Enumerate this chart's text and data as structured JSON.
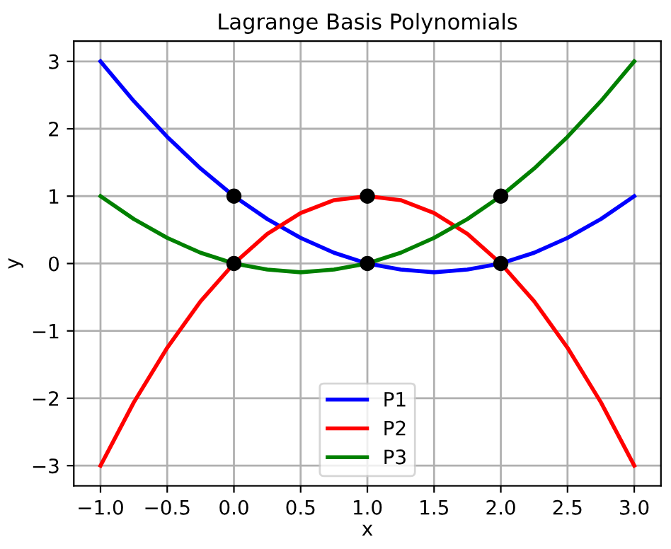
{
  "chart_data": {
    "type": "line",
    "title": "Lagrange Basis Polynomials",
    "xlabel": "x",
    "ylabel": "y",
    "x": [
      -1,
      -0.75,
      -0.5,
      -0.25,
      0,
      0.25,
      0.5,
      0.75,
      1,
      1.25,
      1.5,
      1.75,
      2,
      2.25,
      2.5,
      2.75,
      3
    ],
    "series": [
      {
        "name": "P1",
        "color": "#0000ff",
        "values": [
          3,
          2.41,
          1.88,
          1.41,
          1,
          0.66,
          0.38,
          0.16,
          0,
          -0.09,
          -0.13,
          -0.09,
          0,
          0.16,
          0.38,
          0.66,
          1
        ]
      },
      {
        "name": "P2",
        "color": "#ff0000",
        "values": [
          -3,
          -2.06,
          -1.25,
          -0.56,
          0,
          0.44,
          0.75,
          0.94,
          1,
          0.94,
          0.75,
          0.44,
          0,
          -0.56,
          -1.25,
          -2.06,
          -3
        ]
      },
      {
        "name": "P3",
        "color": "#008000",
        "values": [
          1,
          0.66,
          0.38,
          0.16,
          0,
          -0.09,
          -0.13,
          -0.09,
          0,
          0.16,
          0.38,
          0.66,
          1,
          1.41,
          1.88,
          2.41,
          3
        ]
      },
      {
        "type": "scatter",
        "color": "#000000",
        "marker": "circle",
        "x": [
          0,
          1,
          2,
          0,
          1,
          2
        ],
        "values": [
          1,
          1,
          1,
          0,
          0,
          0
        ]
      }
    ],
    "xlim": [
      -1.2,
      3.2
    ],
    "ylim": [
      -3.3,
      3.3
    ],
    "xticks": [
      {
        "value": -1,
        "label": "−1.0"
      },
      {
        "value": -0.5,
        "label": "−0.5"
      },
      {
        "value": 0,
        "label": "0.0"
      },
      {
        "value": 0.5,
        "label": "0.5"
      },
      {
        "value": 1,
        "label": "1.0"
      },
      {
        "value": 1.5,
        "label": "1.5"
      },
      {
        "value": 2,
        "label": "2.0"
      },
      {
        "value": 2.5,
        "label": "2.5"
      },
      {
        "value": 3,
        "label": "3.0"
      }
    ],
    "yticks": [
      {
        "value": -3,
        "label": "−3"
      },
      {
        "value": -2,
        "label": "−2"
      },
      {
        "value": -1,
        "label": "−1"
      },
      0,
      1,
      2,
      3
    ],
    "grid": true,
    "legend": "bottom",
    "line_style": "solid"
  }
}
